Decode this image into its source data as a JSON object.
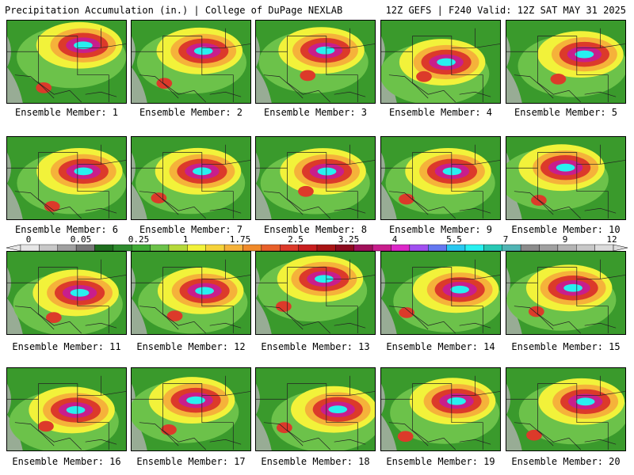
{
  "header": {
    "title": "Precipitation Accumulation (in.) | College of DuPage NEXLAB",
    "run_info": "12Z GEFS | F240 Valid: 12Z SAT MAY 31 2025"
  },
  "panels": [
    {
      "label": "Ensemble Member: 1"
    },
    {
      "label": "Ensemble Member: 2"
    },
    {
      "label": "Ensemble Member: 3"
    },
    {
      "label": "Ensemble Member: 4"
    },
    {
      "label": "Ensemble Member: 5"
    },
    {
      "label": "Ensemble Member: 6"
    },
    {
      "label": "Ensemble Member: 7"
    },
    {
      "label": "Ensemble Member: 8"
    },
    {
      "label": "Ensemble Member: 9"
    },
    {
      "label": "Ensemble Member: 10"
    },
    {
      "label": "Ensemble Member: 11"
    },
    {
      "label": "Ensemble Member: 12"
    },
    {
      "label": "Ensemble Member: 13"
    },
    {
      "label": "Ensemble Member: 14"
    },
    {
      "label": "Ensemble Member: 15"
    },
    {
      "label": "Ensemble Member: 16"
    },
    {
      "label": "Ensemble Member: 17"
    },
    {
      "label": "Ensemble Member: 18"
    },
    {
      "label": "Ensemble Member: 19"
    },
    {
      "label": "Ensemble Member: 20"
    }
  ],
  "colorbar": {
    "tick_labels": [
      "0",
      "0.05",
      "0.25",
      "1",
      "1.75",
      "2.5",
      "3.25",
      "4",
      "5.5",
      "7",
      "9",
      "12"
    ],
    "colors": [
      "#e6e6e6",
      "#c8c8c8",
      "#a0a0a0",
      "#787878",
      "#1e6e1e",
      "#2e8b2e",
      "#3faa35",
      "#6cc24a",
      "#b5d93a",
      "#f2f23a",
      "#f5d23a",
      "#f5b23a",
      "#f08a2a",
      "#e8602a",
      "#dc3a2a",
      "#c81e1e",
      "#a81414",
      "#8c0a1e",
      "#a0105a",
      "#c81e8c",
      "#dc28c8",
      "#a050f0",
      "#6478f0",
      "#28c8f0",
      "#28f0f0",
      "#28c8b4",
      "#50b4b4",
      "#8c8c8c",
      "#a0a0a0",
      "#b4b4b4",
      "#c8c8c8",
      "#dcdcdc"
    ]
  }
}
